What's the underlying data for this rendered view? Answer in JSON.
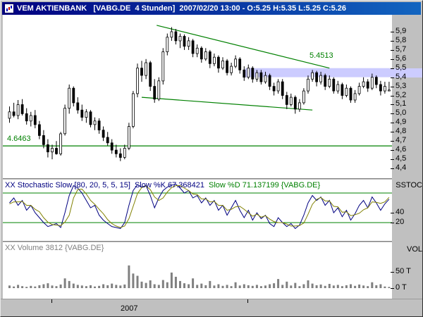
{
  "titlebar": {
    "title": "VEM AKTIENBANK   [VABG.DE  4 Stunden]  2007/02/20 13:00 - O:5.25 H:5.35 L:5.25 C:5.26"
  },
  "main_pane": {
    "trendline_label": "5.4513",
    "support_label": "4.6463",
    "y_ticks": [
      {
        "label": "5,9",
        "value": 5.9
      },
      {
        "label": "5,8",
        "value": 5.8
      },
      {
        "label": "5,7",
        "value": 5.7
      },
      {
        "label": "5,6",
        "value": 5.6
      },
      {
        "label": "5,5",
        "value": 5.5
      },
      {
        "label": "5,4",
        "value": 5.4
      },
      {
        "label": "5,3",
        "value": 5.3
      },
      {
        "label": "5,2",
        "value": 5.2
      },
      {
        "label": "5,1",
        "value": 5.1
      },
      {
        "label": "5,0",
        "value": 5.0
      },
      {
        "label": "4,9",
        "value": 4.9
      },
      {
        "label": "4,8",
        "value": 4.8
      },
      {
        "label": "4,7",
        "value": 4.7
      },
      {
        "label": "4,6",
        "value": 4.6
      },
      {
        "label": "4,5",
        "value": 4.5
      },
      {
        "label": "4,4",
        "value": 4.4
      }
    ]
  },
  "stoch_pane": {
    "pane_label": "SSTOC",
    "header_parts": [
      {
        "text": "XX Stochastic Slow [80, 20, 5, 5, 15]",
        "color": "#000080"
      },
      {
        "text": "Slow %K 67.368421",
        "color": "#000080"
      },
      {
        "text": "Slow %D 71.137199 {VABG.DE}",
        "color": "#008000"
      }
    ],
    "y_ticks": [
      {
        "label": "40",
        "value": 40
      },
      {
        "label": "20",
        "value": 20
      }
    ]
  },
  "volume_pane": {
    "header": "XX Volume 3812 {VABG.DE}",
    "pane_label": "VOL",
    "y_ticks": [
      {
        "label": "50 T",
        "value": 50
      },
      {
        "label": "0 T",
        "value": 0
      }
    ]
  },
  "x_axis": {
    "year_label": "2007",
    "ticks_x": [
      72,
      350
    ]
  },
  "colors": {
    "window_bg": "#c0c0c0",
    "pane_bg": "#ffffff",
    "titlebar_start": "#000080",
    "titlebar_end": "#1265c0",
    "candle": "#000000",
    "trend": "#008000",
    "band": "#ccccff",
    "stoch_k": "#000080",
    "stoch_d": "#808000",
    "stoch_hline": "#008000",
    "volume_bar": "#808080",
    "header_volume": "#808080",
    "axis_text": "#000000"
  },
  "chart_data": [
    {
      "type": "candlestick",
      "title": "VABG.DE 4 Stunden",
      "ylim": [
        4.4,
        5.9
      ],
      "last_bar": {
        "open": 5.25,
        "high": 5.35,
        "low": 5.25,
        "close": 5.26
      },
      "support_line": 4.6463,
      "band": {
        "from_price": 5.4,
        "to_price": 5.5,
        "start_bar": 55.5,
        "value_label": 5.4513
      },
      "trendlines": [
        {
          "from_bar": 34.5,
          "from_price": 5.97,
          "to_bar": 75,
          "to_price": 5.5
        },
        {
          "from_bar": 31,
          "from_price": 5.18,
          "to_bar": 71,
          "to_price": 5.04
        }
      ],
      "ohlc": [
        [
          4.95,
          5.08,
          4.9,
          5.02
        ],
        [
          5.02,
          5.12,
          4.96,
          4.98
        ],
        [
          4.98,
          5.15,
          4.94,
          5.1
        ],
        [
          5.1,
          5.16,
          4.98,
          5.0
        ],
        [
          5.0,
          5.06,
          4.88,
          4.92
        ],
        [
          4.92,
          5.02,
          4.86,
          4.98
        ],
        [
          4.98,
          5.04,
          4.84,
          4.88
        ],
        [
          4.88,
          4.92,
          4.72,
          4.76
        ],
        [
          4.76,
          4.82,
          4.62,
          4.66
        ],
        [
          4.66,
          4.72,
          4.52,
          4.58
        ],
        [
          4.58,
          4.66,
          4.5,
          4.62
        ],
        [
          4.62,
          4.7,
          4.55,
          4.56
        ],
        [
          4.56,
          4.8,
          4.54,
          4.78
        ],
        [
          4.78,
          5.1,
          4.76,
          5.06
        ],
        [
          5.06,
          5.32,
          5.0,
          5.28
        ],
        [
          5.28,
          5.3,
          5.08,
          5.12
        ],
        [
          5.12,
          5.18,
          5.0,
          5.04
        ],
        [
          5.04,
          5.1,
          4.92,
          4.96
        ],
        [
          4.96,
          5.05,
          4.9,
          5.02
        ],
        [
          5.02,
          5.04,
          4.85,
          4.88
        ],
        [
          4.88,
          4.96,
          4.82,
          4.92
        ],
        [
          4.92,
          4.95,
          4.78,
          4.82
        ],
        [
          4.82,
          4.86,
          4.7,
          4.74
        ],
        [
          4.74,
          4.8,
          4.65,
          4.68
        ],
        [
          4.68,
          4.72,
          4.56,
          4.6
        ],
        [
          4.6,
          4.66,
          4.52,
          4.56
        ],
        [
          4.56,
          4.62,
          4.48,
          4.52
        ],
        [
          4.52,
          4.66,
          4.5,
          4.62
        ],
        [
          4.62,
          4.9,
          4.6,
          4.86
        ],
        [
          4.86,
          5.25,
          4.84,
          5.22
        ],
        [
          5.22,
          5.55,
          5.18,
          5.5
        ],
        [
          5.5,
          5.58,
          5.35,
          5.42
        ],
        [
          5.42,
          5.6,
          5.38,
          5.56
        ],
        [
          5.56,
          5.58,
          5.25,
          5.3
        ],
        [
          5.3,
          5.38,
          5.12,
          5.16
        ],
        [
          5.16,
          5.4,
          5.14,
          5.36
        ],
        [
          5.36,
          5.72,
          5.32,
          5.68
        ],
        [
          5.68,
          5.88,
          5.64,
          5.84
        ],
        [
          5.84,
          5.95,
          5.8,
          5.9
        ],
        [
          5.9,
          5.93,
          5.76,
          5.8
        ],
        [
          5.8,
          5.88,
          5.72,
          5.85
        ],
        [
          5.85,
          5.87,
          5.7,
          5.74
        ],
        [
          5.74,
          5.84,
          5.7,
          5.8
        ],
        [
          5.8,
          5.82,
          5.62,
          5.66
        ],
        [
          5.66,
          5.76,
          5.62,
          5.72
        ],
        [
          5.72,
          5.74,
          5.56,
          5.6
        ],
        [
          5.6,
          5.72,
          5.58,
          5.68
        ],
        [
          5.68,
          5.7,
          5.5,
          5.55
        ],
        [
          5.55,
          5.66,
          5.52,
          5.62
        ],
        [
          5.62,
          5.64,
          5.45,
          5.5
        ],
        [
          5.5,
          5.62,
          5.48,
          5.58
        ],
        [
          5.58,
          5.6,
          5.42,
          5.45
        ],
        [
          5.45,
          5.56,
          5.42,
          5.52
        ],
        [
          5.52,
          5.64,
          5.5,
          5.6
        ],
        [
          5.6,
          5.62,
          5.44,
          5.48
        ],
        [
          5.48,
          5.52,
          5.36,
          5.4
        ],
        [
          5.4,
          5.54,
          5.38,
          5.5
        ],
        [
          5.5,
          5.52,
          5.34,
          5.38
        ],
        [
          5.38,
          5.48,
          5.35,
          5.45
        ],
        [
          5.45,
          5.48,
          5.32,
          5.35
        ],
        [
          5.35,
          5.46,
          5.33,
          5.42
        ],
        [
          5.42,
          5.44,
          5.26,
          5.3
        ],
        [
          5.3,
          5.34,
          5.2,
          5.25
        ],
        [
          5.25,
          5.38,
          5.22,
          5.35
        ],
        [
          5.35,
          5.38,
          5.16,
          5.2
        ],
        [
          5.2,
          5.24,
          5.05,
          5.1
        ],
        [
          5.1,
          5.22,
          5.08,
          5.18
        ],
        [
          5.18,
          5.2,
          5.0,
          5.05
        ],
        [
          5.05,
          5.16,
          5.02,
          5.12
        ],
        [
          5.12,
          5.28,
          5.1,
          5.25
        ],
        [
          5.25,
          5.42,
          5.22,
          5.38
        ],
        [
          5.38,
          5.48,
          5.35,
          5.45
        ],
        [
          5.45,
          5.47,
          5.3,
          5.35
        ],
        [
          5.35,
          5.46,
          5.32,
          5.42
        ],
        [
          5.42,
          5.44,
          5.26,
          5.3
        ],
        [
          5.3,
          5.42,
          5.28,
          5.38
        ],
        [
          5.38,
          5.4,
          5.22,
          5.25
        ],
        [
          5.25,
          5.36,
          5.22,
          5.32
        ],
        [
          5.32,
          5.34,
          5.16,
          5.2
        ],
        [
          5.2,
          5.32,
          5.18,
          5.28
        ],
        [
          5.28,
          5.3,
          5.12,
          5.15
        ],
        [
          5.15,
          5.26,
          5.12,
          5.22
        ],
        [
          5.22,
          5.34,
          5.2,
          5.3
        ],
        [
          5.3,
          5.4,
          5.28,
          5.35
        ],
        [
          5.35,
          5.38,
          5.24,
          5.28
        ],
        [
          5.28,
          5.44,
          5.26,
          5.4
        ],
        [
          5.4,
          5.42,
          5.28,
          5.32
        ],
        [
          5.32,
          5.36,
          5.2,
          5.25
        ],
        [
          5.25,
          5.35,
          5.22,
          5.3
        ],
        [
          5.25,
          5.35,
          5.25,
          5.26
        ]
      ]
    },
    {
      "type": "line",
      "name": "Stochastic Slow [80, 20, 5, 5, 15]",
      "ylim": [
        0,
        100
      ],
      "hlines": [
        80,
        20
      ],
      "series": [
        {
          "name": "Slow %K",
          "last": 67.368421,
          "color": "#000080",
          "values": [
            60,
            70,
            55,
            65,
            45,
            55,
            40,
            30,
            20,
            12,
            15,
            18,
            10,
            40,
            75,
            95,
            90,
            80,
            65,
            50,
            55,
            35,
            25,
            18,
            12,
            10,
            8,
            20,
            55,
            85,
            97,
            92,
            95,
            75,
            50,
            70,
            85,
            92,
            96,
            98,
            90,
            80,
            85,
            70,
            75,
            60,
            70,
            55,
            65,
            45,
            55,
            35,
            50,
            65,
            45,
            30,
            45,
            25,
            40,
            28,
            35,
            18,
            12,
            30,
            20,
            12,
            18,
            8,
            15,
            35,
            60,
            75,
            65,
            72,
            55,
            65,
            40,
            50,
            32,
            45,
            25,
            38,
            55,
            65,
            50,
            72,
            60,
            45,
            58,
            67.368421
          ]
        },
        {
          "name": "Slow %D",
          "last": 71.137199,
          "color": "#808000",
          "values": [
            58,
            62,
            62,
            63,
            55,
            55,
            47,
            42,
            30,
            21,
            16,
            15,
            14,
            21,
            35,
            70,
            87,
            88,
            78,
            65,
            57,
            47,
            38,
            26,
            18,
            13,
            10,
            13,
            28,
            53,
            79,
            91,
            94,
            87,
            72,
            65,
            70,
            82,
            91,
            95,
            95,
            90,
            85,
            78,
            77,
            68,
            68,
            62,
            63,
            55,
            55,
            45,
            47,
            52,
            53,
            47,
            40,
            33,
            37,
            31,
            34,
            27,
            22,
            20,
            20,
            17,
            13,
            13,
            14,
            19,
            37,
            57,
            67,
            71,
            64,
            64,
            53,
            52,
            41,
            42,
            34,
            36,
            39,
            46,
            50,
            62,
            61,
            59,
            62,
            71.137199
          ]
        }
      ]
    },
    {
      "type": "bar",
      "name": "Volume",
      "last": 3812,
      "unit": "T",
      "ylim": [
        0,
        100
      ],
      "values": [
        8,
        5,
        10,
        6,
        4,
        7,
        5,
        9,
        12,
        15,
        8,
        6,
        11,
        30,
        22,
        14,
        10,
        8,
        6,
        9,
        5,
        7,
        12,
        9,
        14,
        10,
        8,
        11,
        70,
        45,
        38,
        20,
        16,
        24,
        12,
        10,
        25,
        18,
        48,
        35,
        22,
        15,
        12,
        30,
        10,
        14,
        9,
        22,
        8,
        12,
        7,
        10,
        6,
        18,
        8,
        12,
        9,
        7,
        10,
        6,
        8,
        12,
        15,
        28,
        10,
        20,
        8,
        16,
        6,
        12,
        24,
        14,
        9,
        11,
        7,
        13,
        8,
        10,
        6,
        9,
        12,
        7,
        11,
        8,
        6,
        18,
        9,
        12,
        5,
        3.8
      ]
    }
  ]
}
